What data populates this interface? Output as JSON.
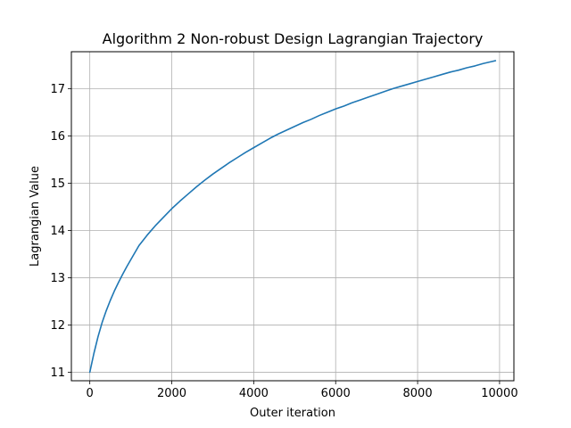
{
  "chart_data": {
    "type": "line",
    "title": "Algorithm 2 Non-robust Design Lagrangian Trajectory",
    "xlabel": "Outer iteration",
    "ylabel": "Lagrangian Value",
    "xlim": [
      -450,
      10350
    ],
    "ylim": [
      10.82,
      17.78
    ],
    "xticks": [
      0,
      2000,
      4000,
      6000,
      8000,
      10000
    ],
    "xtick_labels": [
      "0",
      "2000",
      "4000",
      "6000",
      "8000",
      "10000"
    ],
    "yticks": [
      11,
      12,
      13,
      14,
      15,
      16,
      17
    ],
    "ytick_labels": [
      "11",
      "12",
      "13",
      "14",
      "15",
      "16",
      "17"
    ],
    "grid": true,
    "legend": "none",
    "line_color": "#1f77b4",
    "series": [
      {
        "x": [
          0,
          100,
          200,
          300,
          400,
          500,
          600,
          700,
          800,
          900,
          1000,
          1200,
          1400,
          1600,
          1800,
          2000,
          2200,
          2400,
          2600,
          2800,
          3000,
          3200,
          3400,
          3600,
          3800,
          4000,
          4200,
          4400,
          4600,
          4800,
          5000,
          5200,
          5400,
          5600,
          5800,
          6000,
          6200,
          6400,
          6600,
          6800,
          7000,
          7200,
          7400,
          7600,
          7800,
          8000,
          8200,
          8400,
          8600,
          8800,
          9000,
          9200,
          9400,
          9600,
          9800,
          9900
        ],
        "y": [
          11.0,
          11.4,
          11.75,
          12.05,
          12.3,
          12.52,
          12.72,
          12.9,
          13.07,
          13.23,
          13.38,
          13.68,
          13.9,
          14.1,
          14.28,
          14.46,
          14.62,
          14.77,
          14.92,
          15.06,
          15.19,
          15.31,
          15.43,
          15.54,
          15.65,
          15.75,
          15.85,
          15.95,
          16.04,
          16.12,
          16.2,
          16.28,
          16.35,
          16.43,
          16.5,
          16.57,
          16.63,
          16.7,
          16.76,
          16.82,
          16.88,
          16.94,
          17.0,
          17.05,
          17.1,
          17.15,
          17.2,
          17.25,
          17.3,
          17.35,
          17.39,
          17.44,
          17.48,
          17.53,
          17.57,
          17.59
        ]
      }
    ]
  }
}
